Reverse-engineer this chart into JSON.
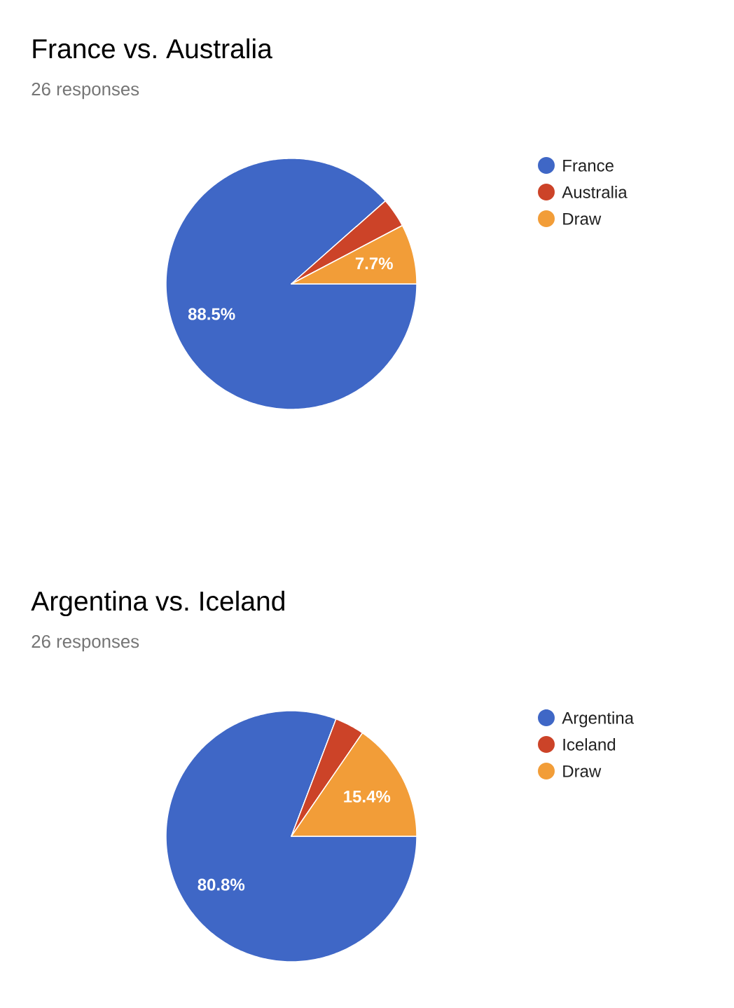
{
  "chart_data": [
    {
      "type": "pie",
      "title": "France vs. Australia",
      "subtitle": "26 responses",
      "categories": [
        "France",
        "Australia",
        "Draw"
      ],
      "values": [
        88.5,
        3.8,
        7.7
      ],
      "colors": [
        "#3f67c6",
        "#cc4328",
        "#f29d38"
      ],
      "value_labels": [
        "88.5%",
        null,
        "7.7%"
      ],
      "legend": "top right"
    },
    {
      "type": "pie",
      "title": "Argentina vs. Iceland",
      "subtitle": "26 responses",
      "categories": [
        "Argentina",
        "Iceland",
        "Draw"
      ],
      "values": [
        80.8,
        3.8,
        15.4
      ],
      "colors": [
        "#3f67c6",
        "#cc4328",
        "#f29d38"
      ],
      "value_labels": [
        "80.8%",
        null,
        "15.4%"
      ],
      "legend": "top right"
    }
  ]
}
